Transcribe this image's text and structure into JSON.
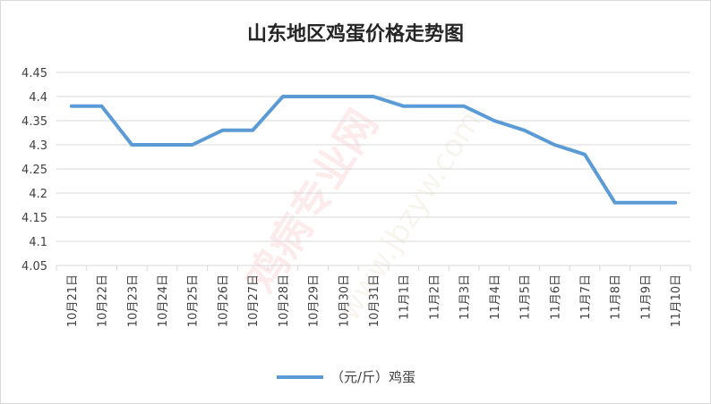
{
  "chart_data": {
    "type": "line",
    "title": "山东地区鸡蛋价格走势图",
    "categories": [
      "10月21日",
      "10月22日",
      "10月23日",
      "10月24日",
      "10月25日",
      "10月26日",
      "10月27日",
      "10月28日",
      "10月29日",
      "10月30日",
      "10月31日",
      "11月1日",
      "11月2日",
      "11月3日",
      "11月4日",
      "11月5日",
      "11月6日",
      "11月7日",
      "11月8日",
      "11月9日",
      "11月10日"
    ],
    "series": [
      {
        "name": "（元/斤）鸡蛋",
        "color": "#5b9bd5",
        "values": [
          4.38,
          4.38,
          4.3,
          4.3,
          4.3,
          4.33,
          4.33,
          4.4,
          4.4,
          4.4,
          4.4,
          4.38,
          4.38,
          4.38,
          4.35,
          4.33,
          4.3,
          4.28,
          4.18,
          4.18,
          4.18
        ]
      }
    ],
    "ylim": [
      4.05,
      4.45
    ],
    "yticks": [
      "4.05",
      "4.1",
      "4.15",
      "4.2",
      "4.25",
      "4.3",
      "4.35",
      "4.4",
      "4.45"
    ],
    "xlabel": "",
    "ylabel": "",
    "grid": true,
    "legend": "bottom"
  },
  "watermark": {
    "text1": "鸡病专业网",
    "text2": "www.jbzyw.com"
  }
}
